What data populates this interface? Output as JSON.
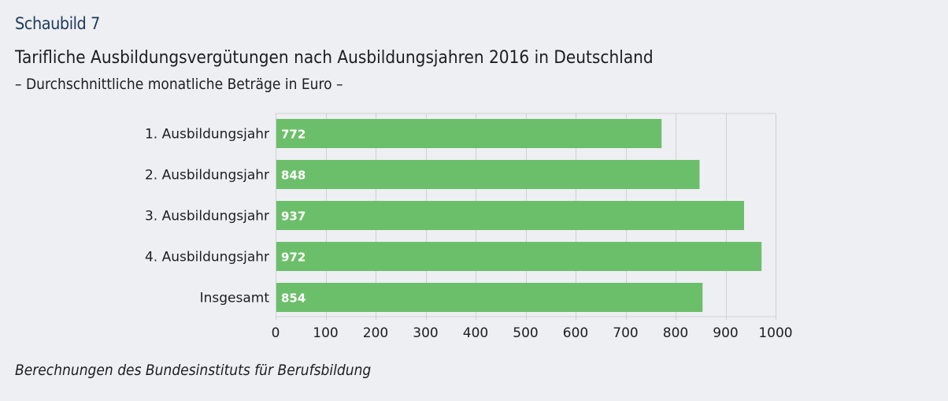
{
  "header": {
    "figure_label": "Schaubild 7",
    "title": "Tarifliche Ausbildungsvergütungen nach Ausbildungsjahren 2016 in Deutschland",
    "subtitle": "– Durchschnittliche monatliche Beträge in Euro –"
  },
  "footer": {
    "source": "Berechnungen des Bundesinstituts für Berufsbildung"
  },
  "colors": {
    "background": "#eeeff3",
    "bar": "#6cbf6a",
    "grid": "#cfd0d5",
    "label_blue": "#1f3a5a"
  },
  "chart_data": {
    "type": "bar",
    "orientation": "horizontal",
    "title": "Tarifliche Ausbildungsvergütungen nach Ausbildungsjahren 2016 in Deutschland",
    "subtitle": "– Durchschnittliche monatliche Beträge in Euro –",
    "categories": [
      "1. Ausbildungsjahr",
      "2. Ausbildungsjahr",
      "3. Ausbildungsjahr",
      "4. Ausbildungsjahr",
      "Insgesamt"
    ],
    "values": [
      772,
      848,
      937,
      972,
      854
    ],
    "data_labels": [
      "772",
      "848",
      "937",
      "972",
      "854"
    ],
    "xlabel": "",
    "ylabel": "",
    "xlim": [
      0,
      1000
    ],
    "xticks": [
      0,
      100,
      200,
      300,
      400,
      500,
      600,
      700,
      800,
      900,
      1000
    ],
    "xtick_labels": [
      "0",
      "100",
      "200",
      "300",
      "400",
      "500",
      "600",
      "700",
      "800",
      "900",
      "1000"
    ],
    "grid": true,
    "legend": "none"
  }
}
